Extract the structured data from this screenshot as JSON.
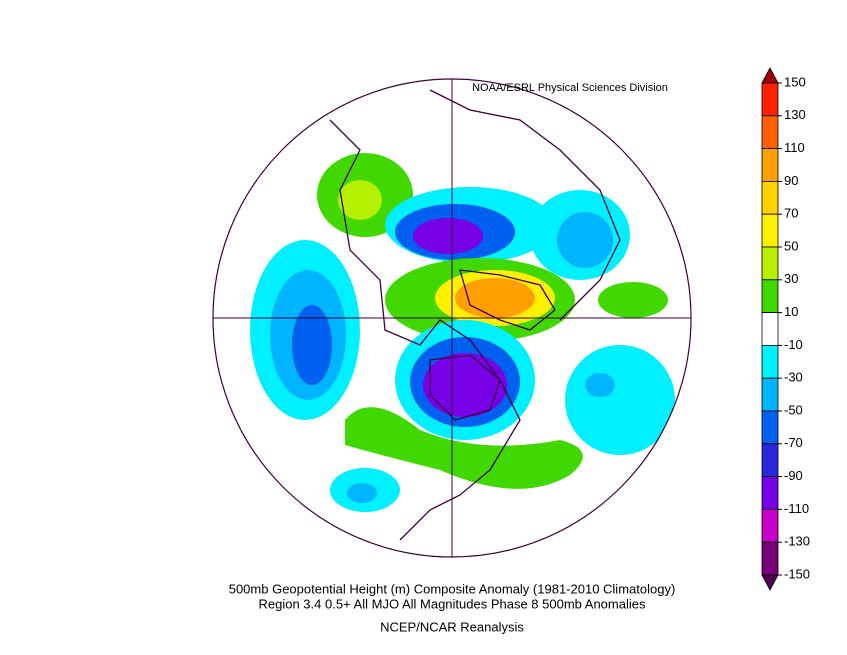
{
  "header": {
    "credit": "NOAA/ESRL Physical Sciences Division"
  },
  "footer": {
    "title": "500mb Geopotential Height (m) Composite Anomaly (1981-2010 Climatology)",
    "subtitle": "Region 3.4 0.5+ All MJO All Magnitudes Phase 8 500mb  Anomalies",
    "source": "NCEP/NCAR Reanalysis"
  },
  "colorbar": {
    "ticks": [
      150,
      130,
      110,
      90,
      70,
      50,
      30,
      10,
      -10,
      -30,
      -50,
      -70,
      -90,
      -110,
      -130,
      -150
    ],
    "colors": [
      "#a00000",
      "#ff2000",
      "#ff6000",
      "#ffa000",
      "#ffd200",
      "#fff000",
      "#b4f000",
      "#40d800",
      "#ffffff",
      "#00f0ff",
      "#00b4ff",
      "#0060f0",
      "#2828dc",
      "#7800e6",
      "#c800c8",
      "#780078",
      "#500050"
    ]
  }
}
